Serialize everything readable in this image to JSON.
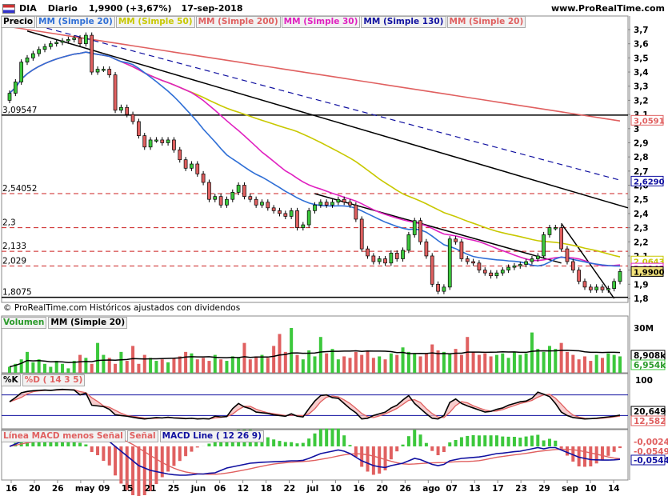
{
  "header": {
    "ticker": "DIA",
    "period": "Diario",
    "price_change": "1,9900 (+3,67%)",
    "date": "17-sep-2018",
    "site": "www.ProRealTime.com"
  },
  "legend": {
    "price": "Precio",
    "items": [
      {
        "label": "MM (Simple 20)",
        "color": "#2f6fd6"
      },
      {
        "label": "MM (Simple 50)",
        "color": "#c8c800"
      },
      {
        "label": "MM (Simple 200)",
        "color": "#e06060"
      },
      {
        "label": "MM (Simple 30)",
        "color": "#e020c0"
      },
      {
        "label": "MM (Simple 130)",
        "color": "#1010a0"
      },
      {
        "label": "MM (Simple 20)",
        "color": "#e06060"
      }
    ]
  },
  "credit": "© ProRealTime.com  Históricos ajustados con dividendos",
  "volume_legend": {
    "title": "Volumen",
    "ma": "MM (Simple 20)"
  },
  "stoch_legend": {
    "k": "%K",
    "d": "%D ( 14 3 5)"
  },
  "macd_legend": {
    "hist": "Línea MACD menos Señal",
    "signal": "Señal",
    "line": "MACD Line ( 12 26 9)"
  },
  "colors": {
    "up": "#3cc83c",
    "down": "#e06060",
    "ma20": "#2f6fd6",
    "ma50": "#c8c800",
    "ma200": "#e06060",
    "ma30": "#e020c0",
    "ma130": "#1010a0"
  },
  "chart_data": {
    "type": "candlestick",
    "price_axis": {
      "ticks": [
        "3,7",
        "3,6",
        "3,5",
        "3,4",
        "3,3",
        "3,2",
        "3,1",
        "3",
        "2,9",
        "2,8",
        "2,7",
        "2,6",
        "2,5",
        "2,4",
        "2,3",
        "2,2",
        "2,1",
        "2",
        "1,9",
        "1,8"
      ]
    },
    "x_ticks": [
      "16",
      "20",
      "26",
      "may",
      "09",
      "15",
      "21",
      "25",
      "jun",
      "06",
      "12",
      "18",
      "22",
      "jul",
      "10",
      "16",
      "20",
      "26",
      "ago",
      "07",
      "13",
      "17",
      "23",
      "29",
      "sep",
      "10",
      "14"
    ],
    "horizontal_levels": [
      {
        "label": "3,09547",
        "value": 3.09547,
        "style": "solid"
      },
      {
        "label": "2,54052",
        "value": 2.54052,
        "style": "dashed"
      },
      {
        "label": "2,3",
        "value": 2.3,
        "style": "dashed"
      },
      {
        "label": "2,133",
        "value": 2.133,
        "style": "dashed"
      },
      {
        "label": "2,029",
        "value": 2.029,
        "style": "dashed"
      },
      {
        "label": "1,8075",
        "value": 1.8075,
        "style": "solid"
      }
    ],
    "right_labels": [
      {
        "label": "3,0591",
        "value": 3.0591,
        "color": "#e06060"
      },
      {
        "label": "2,6290",
        "value": 2.629,
        "color": "#1010a0"
      },
      {
        "label": "2,0643",
        "value": 2.0643,
        "color": "#c8c800"
      },
      {
        "label": "2,0143",
        "value": 2.0143,
        "color": "#e020c0"
      },
      {
        "label": "1,9900",
        "value": 1.99,
        "color": "#000000"
      }
    ],
    "closes": [
      3.25,
      3.33,
      3.47,
      3.5,
      3.53,
      3.56,
      3.58,
      3.6,
      3.61,
      3.62,
      3.63,
      3.64,
      3.6,
      3.66,
      3.4,
      3.42,
      3.42,
      3.38,
      3.13,
      3.15,
      3.1,
      3.05,
      2.95,
      2.87,
      2.92,
      2.92,
      2.9,
      2.92,
      2.85,
      2.78,
      2.72,
      2.75,
      2.68,
      2.62,
      2.5,
      2.52,
      2.46,
      2.5,
      2.55,
      2.6,
      2.52,
      2.5,
      2.46,
      2.48,
      2.44,
      2.42,
      2.4,
      2.38,
      2.42,
      2.3,
      2.32,
      2.42,
      2.46,
      2.48,
      2.46,
      2.48,
      2.5,
      2.48,
      2.46,
      2.36,
      2.15,
      2.1,
      2.06,
      2.08,
      2.05,
      2.12,
      2.08,
      2.14,
      2.25,
      2.35,
      2.2,
      2.1,
      1.9,
      1.85,
      1.88,
      2.22,
      2.2,
      2.08,
      2.06,
      2.05,
      2.0,
      1.98,
      1.96,
      1.98,
      2.0,
      2.02,
      2.03,
      2.04,
      2.06,
      2.08,
      2.1,
      2.25,
      2.3,
      2.3,
      2.15,
      2.06,
      2.0,
      1.92,
      1.88,
      1.86,
      1.88,
      1.86,
      1.87,
      1.92,
      1.99
    ],
    "volume": {
      "axis": [
        "30M",
        "8,908k",
        "6,954k"
      ],
      "values": [
        4,
        6,
        9,
        14,
        7,
        9,
        6,
        4,
        8,
        6,
        3,
        8,
        12,
        10,
        6,
        20,
        12,
        10,
        6,
        14,
        8,
        18,
        6,
        12,
        10,
        8,
        9,
        7,
        10,
        11,
        14,
        13,
        9,
        10,
        8,
        12,
        9,
        8,
        11,
        10,
        20,
        9,
        11,
        12,
        10,
        18,
        26,
        14,
        30,
        12,
        9,
        15,
        11,
        24,
        13,
        16,
        9,
        11,
        10,
        14,
        12,
        15,
        10,
        11,
        9,
        13,
        12,
        17,
        14,
        13,
        11,
        13,
        19,
        15,
        14,
        13,
        16,
        12,
        24,
        14,
        12,
        13,
        11,
        12,
        13,
        10,
        14,
        12,
        13,
        27,
        16,
        14,
        18,
        16,
        20,
        14,
        12,
        9,
        11,
        8,
        12,
        10,
        13,
        12,
        11
      ]
    },
    "stochastic": {
      "axis": [
        "100",
        "20,649",
        "12,582"
      ],
      "k": [
        60,
        72,
        86,
        90,
        92,
        93,
        94,
        93,
        95,
        96,
        95,
        94,
        80,
        85,
        50,
        48,
        46,
        38,
        22,
        20,
        18,
        15,
        12,
        10,
        12,
        14,
        13,
        15,
        13,
        12,
        11,
        12,
        10,
        11,
        10,
        18,
        16,
        17,
        40,
        55,
        45,
        40,
        30,
        28,
        26,
        22,
        20,
        18,
        25,
        18,
        16,
        40,
        62,
        78,
        80,
        72,
        70,
        55,
        40,
        28,
        10,
        12,
        20,
        25,
        30,
        42,
        50,
        65,
        78,
        55,
        40,
        25,
        12,
        10,
        20,
        58,
        68,
        55,
        48,
        42,
        36,
        30,
        32,
        38,
        42,
        50,
        55,
        60,
        62,
        70,
        88,
        82,
        75,
        55,
        30,
        20,
        14,
        12,
        10,
        11,
        12,
        14,
        16,
        18,
        21
      ],
      "d": []
    },
    "macd": {
      "axis": [
        "-0,0024",
        "-0,0549",
        "-0,0544"
      ],
      "line": [
        0,
        0.01,
        0.02,
        0.03,
        0.035,
        0.04,
        0.045,
        0.05,
        0.052,
        0.055,
        0.058,
        0.06,
        0.055,
        0.055,
        0.045,
        0.04,
        0.03,
        0.02,
        0.0,
        -0.02,
        -0.04,
        -0.06,
        -0.08,
        -0.09,
        -0.1,
        -0.105,
        -0.11,
        -0.115,
        -0.118,
        -0.12,
        -0.12,
        -0.118,
        -0.115,
        -0.115,
        -0.112,
        -0.11,
        -0.1,
        -0.09,
        -0.085,
        -0.08,
        -0.075,
        -0.07,
        -0.068,
        -0.066,
        -0.065,
        -0.064,
        -0.063,
        -0.062,
        -0.06,
        -0.06,
        -0.058,
        -0.05,
        -0.04,
        -0.03,
        -0.025,
        -0.02,
        -0.015,
        -0.02,
        -0.03,
        -0.045,
        -0.06,
        -0.07,
        -0.08,
        -0.085,
        -0.088,
        -0.08,
        -0.075,
        -0.07,
        -0.06,
        -0.05,
        -0.055,
        -0.065,
        -0.075,
        -0.08,
        -0.075,
        -0.06,
        -0.055,
        -0.05,
        -0.048,
        -0.046,
        -0.044,
        -0.04,
        -0.035,
        -0.03,
        -0.028,
        -0.025,
        -0.022,
        -0.02,
        -0.015,
        -0.01,
        -0.005,
        -0.01,
        -0.005,
        -0.005,
        -0.015,
        -0.025,
        -0.035,
        -0.045,
        -0.05,
        -0.055,
        -0.056,
        -0.057,
        -0.057,
        -0.056,
        -0.054
      ]
    }
  }
}
